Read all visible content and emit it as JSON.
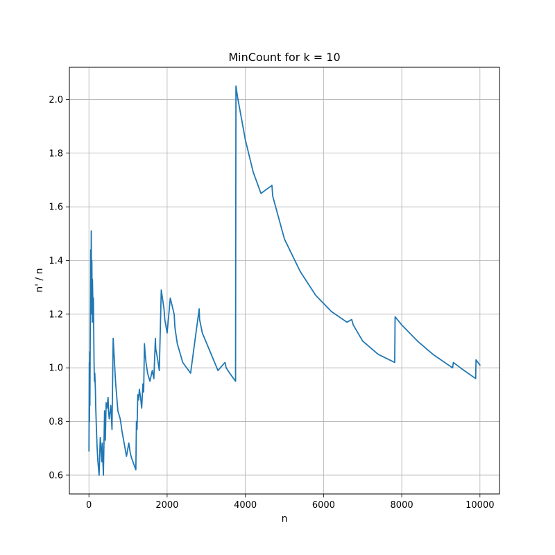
{
  "chart_data": {
    "type": "line",
    "title": "MinCount for k = 10",
    "xlabel": "n",
    "ylabel": "n' / n",
    "xlim": [
      -500,
      10500
    ],
    "ylim": [
      0.53,
      2.12
    ],
    "xticks": [
      0,
      2000,
      4000,
      6000,
      8000,
      10000
    ],
    "xtick_labels": [
      "0",
      "2000",
      "4000",
      "6000",
      "8000",
      "10000"
    ],
    "yticks": [
      0.6,
      0.8,
      1.0,
      1.2,
      1.4,
      1.6,
      1.8,
      2.0
    ],
    "ytick_labels": [
      "0.6",
      "0.8",
      "1.0",
      "1.2",
      "1.4",
      "1.6",
      "1.8",
      "2.0"
    ],
    "grid": true,
    "line_color": "#1f77b4",
    "series": [
      {
        "x": [
          1,
          10,
          15,
          20,
          25,
          35,
          40,
          45,
          55,
          60,
          70,
          75,
          85,
          90,
          100,
          110,
          115,
          130,
          140,
          150,
          165,
          175,
          190,
          210,
          230,
          260,
          290,
          330,
          340,
          370,
          400,
          420,
          440,
          460,
          490,
          500,
          520,
          560,
          590,
          620,
          680,
          740,
          800,
          850,
          900,
          960,
          1020,
          1060,
          1100,
          1200,
          1215,
          1230,
          1250,
          1270,
          1290,
          1320,
          1350,
          1380,
          1400,
          1420,
          1440,
          1460,
          1500,
          1560,
          1620,
          1660,
          1700,
          1710,
          1760,
          1800,
          1850,
          1920,
          1940,
          2000,
          2080,
          2180,
          2200,
          2260,
          2400,
          2600,
          2820,
          2830,
          2900,
          3100,
          3300,
          3480,
          3510,
          3600,
          3750,
          3760,
          3800,
          4000,
          4200,
          4400,
          4680,
          4700,
          5000,
          5400,
          5800,
          6200,
          6600,
          6720,
          6760,
          7000,
          7400,
          7820,
          7830,
          8000,
          8400,
          8800,
          9300,
          9320,
          9500,
          9890,
          9900,
          10000
        ],
        "y": [
          0.69,
          1.02,
          0.8,
          1.06,
          0.86,
          1.15,
          1.25,
          1.44,
          1.28,
          1.51,
          1.2,
          1.4,
          1.17,
          1.33,
          1.25,
          1.17,
          1.26,
          1.03,
          0.95,
          0.98,
          0.92,
          0.85,
          0.78,
          0.7,
          0.65,
          0.6,
          0.74,
          0.65,
          0.72,
          0.6,
          0.84,
          0.73,
          0.87,
          0.85,
          0.89,
          0.84,
          0.81,
          0.86,
          0.77,
          1.11,
          0.95,
          0.84,
          0.81,
          0.76,
          0.72,
          0.67,
          0.72,
          0.68,
          0.66,
          0.62,
          0.8,
          0.77,
          0.9,
          0.88,
          0.92,
          0.89,
          0.85,
          0.94,
          0.91,
          1.09,
          1.05,
          1.02,
          0.98,
          0.95,
          0.99,
          0.96,
          1.11,
          1.07,
          1.03,
          0.99,
          1.29,
          1.22,
          1.18,
          1.13,
          1.26,
          1.2,
          1.15,
          1.09,
          1.02,
          0.98,
          1.22,
          1.18,
          1.13,
          1.06,
          0.99,
          1.02,
          1.0,
          0.98,
          0.95,
          2.05,
          2.01,
          1.85,
          1.73,
          1.65,
          1.68,
          1.64,
          1.48,
          1.36,
          1.27,
          1.21,
          1.17,
          1.18,
          1.16,
          1.1,
          1.05,
          1.02,
          1.19,
          1.16,
          1.1,
          1.05,
          1.0,
          1.02,
          1.0,
          0.96,
          1.03,
          1.01
        ]
      }
    ]
  }
}
